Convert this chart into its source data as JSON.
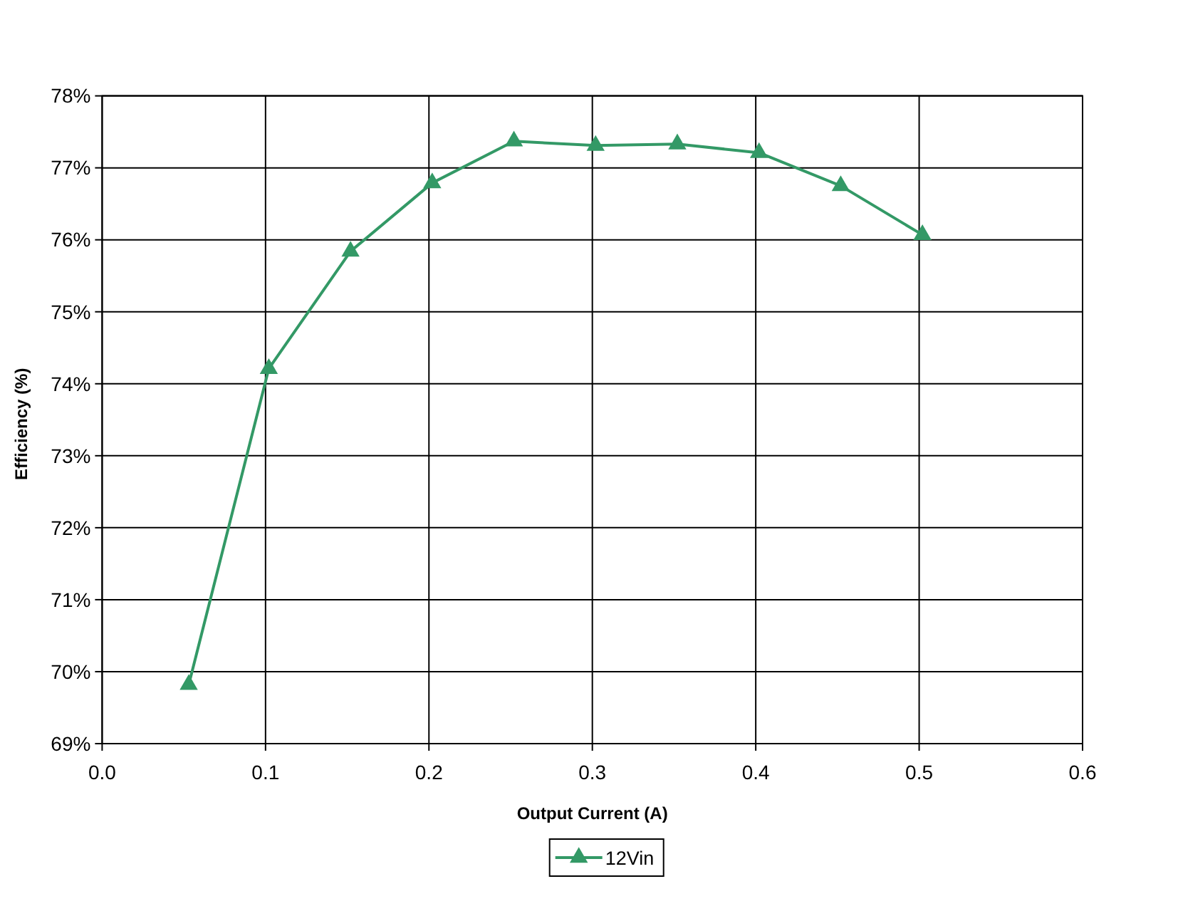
{
  "chart_data": {
    "type": "line",
    "xlabel": "Output Current (A)",
    "ylabel": "Efficiency (%)",
    "x": [
      0.053,
      0.102,
      0.152,
      0.202,
      0.252,
      0.302,
      0.352,
      0.402,
      0.452,
      0.502
    ],
    "series": [
      {
        "name": "12Vin",
        "color": "#339966",
        "values": [
          69.82,
          74.21,
          75.84,
          76.79,
          77.37,
          77.31,
          77.33,
          77.21,
          76.75,
          76.07
        ]
      }
    ],
    "xlim": [
      0,
      0.6
    ],
    "xticks": [
      {
        "value": 0,
        "label": "0.0"
      },
      0.1,
      0.2,
      0.3,
      0.4,
      0.5,
      0.6
    ],
    "ylim": [
      69,
      78
    ],
    "yticks": [
      {
        "value": 69,
        "label": "69%"
      },
      {
        "value": 70,
        "label": "70%"
      },
      {
        "value": 71,
        "label": "71%"
      },
      {
        "value": 72,
        "label": "72%"
      },
      {
        "value": 73,
        "label": "73%"
      },
      {
        "value": 74,
        "label": "74%"
      },
      {
        "value": 75,
        "label": "75%"
      },
      {
        "value": 76,
        "label": "76%"
      },
      {
        "value": 77,
        "label": "77%"
      },
      {
        "value": 78,
        "label": "78%"
      }
    ],
    "grid": true,
    "legend": "bottom",
    "marker": "triangle",
    "line_style": "solid"
  }
}
